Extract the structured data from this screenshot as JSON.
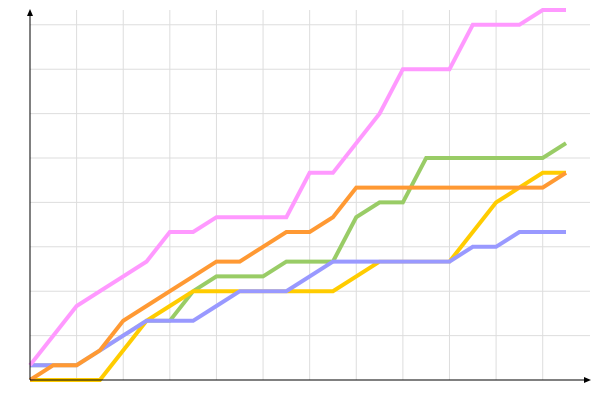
{
  "chart_data": {
    "type": "line",
    "title": "",
    "xlabel": "",
    "ylabel": "",
    "xlim": [
      0,
      23
    ],
    "ylim": [
      0,
      25
    ],
    "grid": true,
    "x_grid_step": 2,
    "y_grid_step": 3,
    "x": [
      0,
      1,
      2,
      3,
      4,
      5,
      6,
      7,
      8,
      9,
      10,
      11,
      12,
      13,
      14,
      15,
      16,
      17,
      18,
      19,
      20,
      21,
      22,
      23
    ],
    "series": [
      {
        "color": "#99cc66",
        "values": [
          1,
          1,
          1,
          2,
          3,
          4,
          4,
          6,
          7,
          7,
          7,
          8,
          8,
          8,
          11,
          12,
          12,
          15,
          15,
          15,
          15,
          15,
          15,
          16
        ]
      },
      {
        "color": "#ffcc00",
        "values": [
          0,
          0,
          0,
          0,
          2,
          4,
          5,
          6,
          6,
          6,
          6,
          6,
          6,
          6,
          7,
          8,
          8,
          8,
          8,
          10,
          12,
          13,
          14,
          14
        ]
      },
      {
        "color": "#9999ff",
        "values": [
          1,
          1,
          1,
          2,
          3,
          4,
          4,
          4,
          5,
          6,
          6,
          6,
          7,
          8,
          8,
          8,
          8,
          8,
          8,
          9,
          9,
          10,
          10,
          10
        ]
      },
      {
        "color": "#ff9933",
        "values": [
          0,
          1,
          1,
          2,
          4,
          5,
          6,
          7,
          8,
          8,
          9,
          10,
          10,
          11,
          13,
          13,
          13,
          13,
          13,
          13,
          13,
          13,
          13,
          14
        ]
      },
      {
        "color": "#ff99ff",
        "values": [
          1,
          3,
          5,
          6,
          7,
          8,
          10,
          10,
          11,
          11,
          11,
          11,
          14,
          14,
          16,
          18,
          21,
          21,
          21,
          24,
          24,
          24,
          25,
          25
        ]
      }
    ]
  }
}
